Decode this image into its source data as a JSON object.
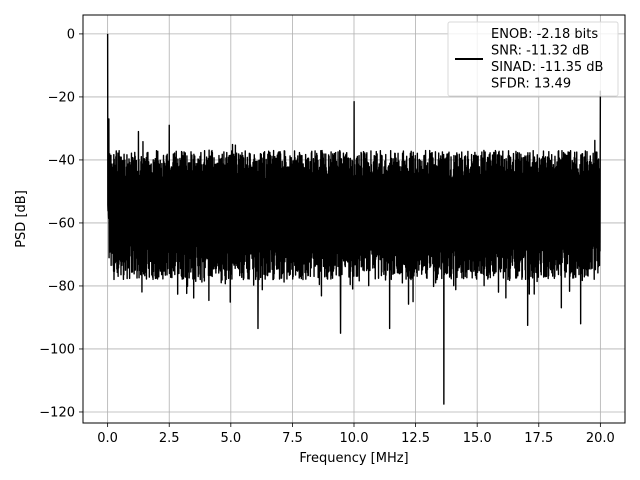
{
  "chart_data": {
    "type": "line",
    "title": "",
    "xlabel": "Frequency [MHz]",
    "ylabel": "PSD [dB]",
    "xlim": [
      -1.0,
      21.0
    ],
    "ylim": [
      -123.5,
      6.0
    ],
    "x_ticks": [
      0.0,
      2.5,
      5.0,
      7.5,
      10.0,
      12.5,
      15.0,
      17.5,
      20.0
    ],
    "x_tick_labels": [
      "0.0",
      "2.5",
      "5.0",
      "7.5",
      "10.0",
      "12.5",
      "15.0",
      "17.5",
      "20.0"
    ],
    "y_ticks": [
      0,
      -20,
      -40,
      -60,
      -80,
      -100,
      -120
    ],
    "y_tick_labels": [
      "0",
      "−20",
      "−40",
      "−60",
      "−80",
      "−100",
      "−120"
    ],
    "grid": true,
    "legend_position": "top-right",
    "line_color": "#000000",
    "series": [
      {
        "name": "ENOB: -2.18 bits\nSNR: -11.32 dB\nSINAD: -11.35 dB\nSFDR: 13.49",
        "noise_band": {
          "x_start": 0.0,
          "x_end": 20.0,
          "upper": -37,
          "lower": -78,
          "upper_peak": -33,
          "lower_dip": -88
        },
        "spurs": [
          {
            "x": 0.0,
            "y": 0.0
          },
          {
            "x": 0.05,
            "y": -27.0
          },
          {
            "x": 1.25,
            "y": -31.0
          },
          {
            "x": 2.5,
            "y": -29.0
          },
          {
            "x": 10.0,
            "y": -21.5
          },
          {
            "x": 20.0,
            "y": -18.0
          }
        ],
        "dips": [
          {
            "x": 6.1,
            "y": -93.5
          },
          {
            "x": 9.45,
            "y": -95.0
          },
          {
            "x": 11.45,
            "y": -93.5
          },
          {
            "x": 13.65,
            "y": -117.5
          },
          {
            "x": 17.05,
            "y": -92.5
          },
          {
            "x": 19.2,
            "y": -92.0
          }
        ]
      }
    ],
    "legend_lines": [
      "ENOB: -2.18 bits",
      "SNR: -11.32 dB",
      "SINAD: -11.35 dB",
      "SFDR: 13.49"
    ]
  }
}
